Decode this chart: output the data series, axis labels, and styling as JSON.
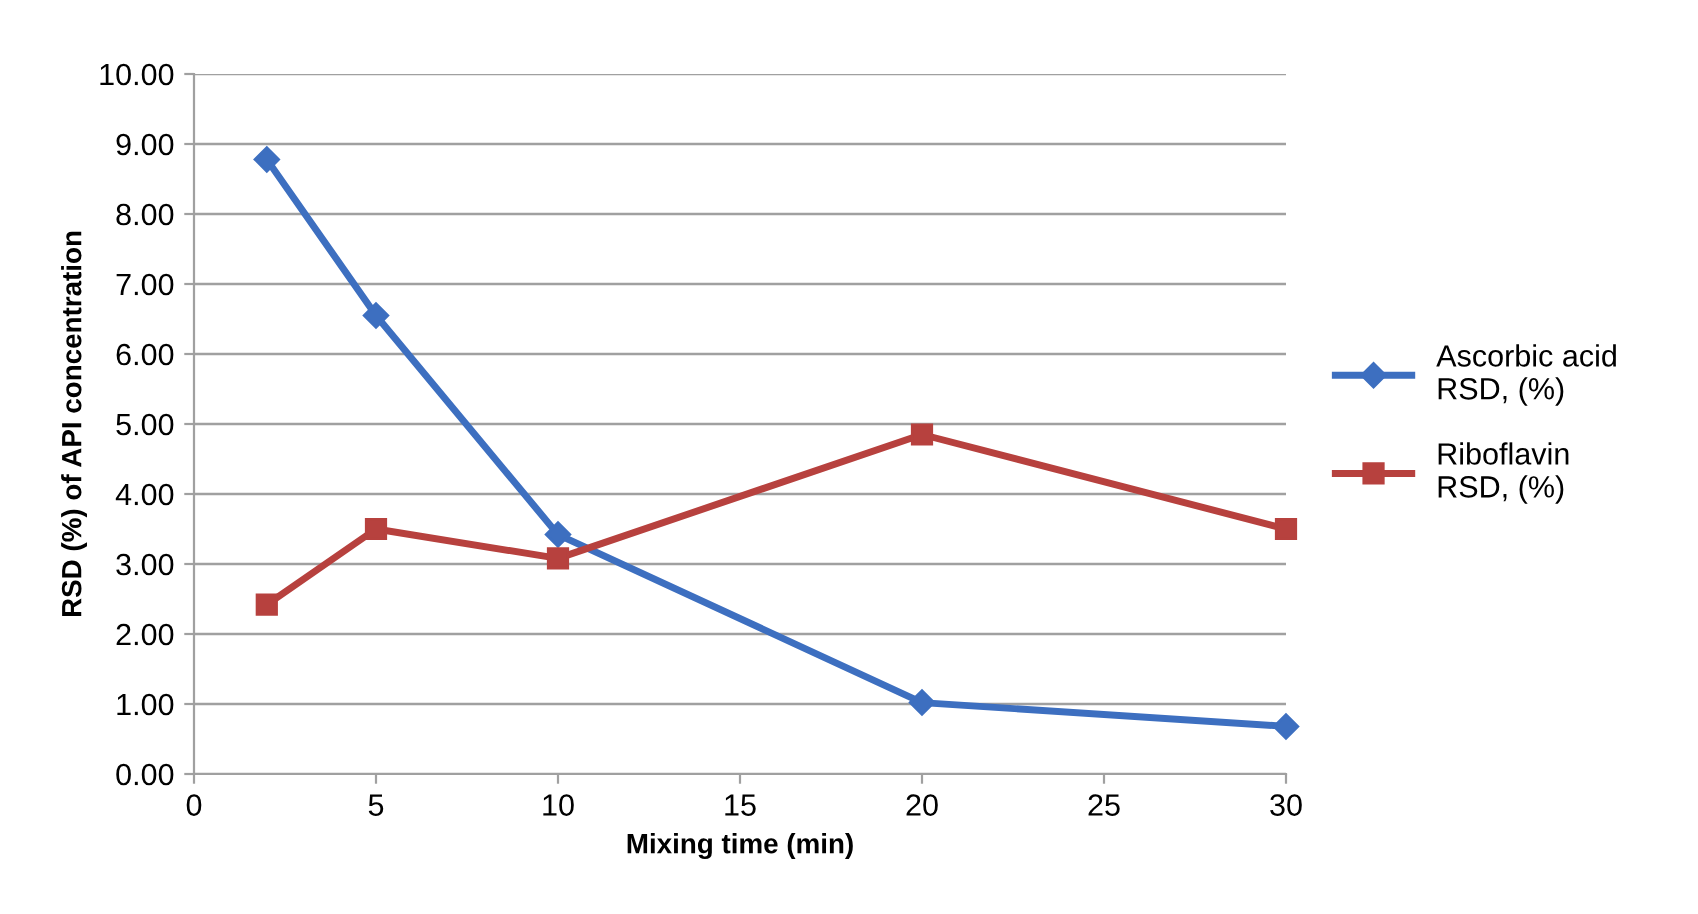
{
  "chart_data": {
    "type": "line",
    "xlabel": "Mixing time (min)",
    "ylabel": "RSD (%) of API concentration",
    "x": [
      2,
      5,
      10,
      20,
      30
    ],
    "series": [
      {
        "name": "Ascorbic acid\nRSD, (%)",
        "color": "#3d6fc0",
        "marker": "diamond",
        "values": [
          8.78,
          6.55,
          3.42,
          1.02,
          0.68
        ]
      },
      {
        "name": "Riboflavin\nRSD, (%)",
        "color": "#b7413e",
        "marker": "square",
        "values": [
          2.42,
          3.5,
          3.08,
          4.85,
          3.5
        ]
      }
    ],
    "xlim": [
      0,
      30
    ],
    "xticks": [
      0,
      5,
      10,
      15,
      20,
      25,
      30
    ],
    "ylim": [
      0,
      10
    ],
    "yticks": [
      {
        "value": 0,
        "label": "0.00"
      },
      {
        "value": 1,
        "label": "1.00"
      },
      {
        "value": 2,
        "label": "2.00"
      },
      {
        "value": 3,
        "label": "3.00"
      },
      {
        "value": 4,
        "label": "4.00"
      },
      {
        "value": 5,
        "label": "5.00"
      },
      {
        "value": 6,
        "label": "6.00"
      },
      {
        "value": 7,
        "label": "7.00"
      },
      {
        "value": 8,
        "label": "8.00"
      },
      {
        "value": 9,
        "label": "9.00"
      },
      {
        "value": 10,
        "label": "10.00"
      }
    ],
    "grid": "y",
    "legend": "right",
    "line_style": "solid"
  }
}
